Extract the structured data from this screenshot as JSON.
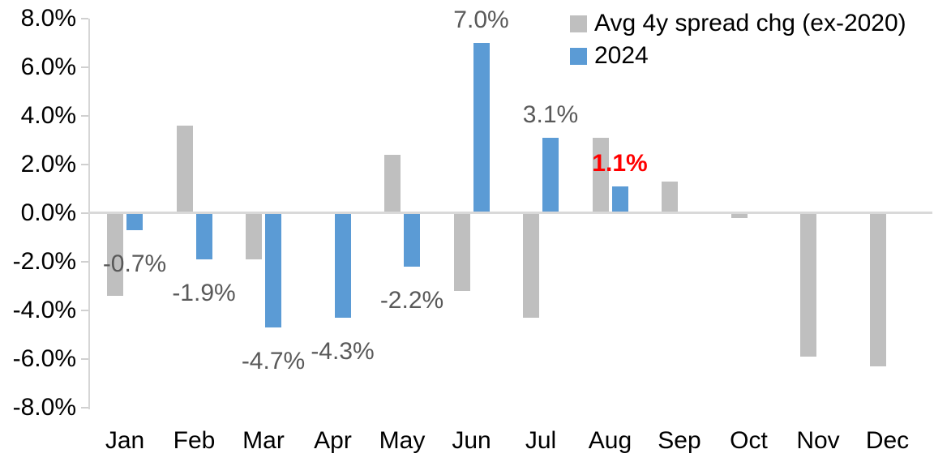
{
  "chart_data": {
    "type": "bar",
    "title": "",
    "xlabel": "",
    "ylabel": "",
    "grid": false,
    "legend_position": "top-right",
    "categories": [
      "Jan",
      "Feb",
      "Mar",
      "Apr",
      "May",
      "Jun",
      "Jul",
      "Aug",
      "Sep",
      "Oct",
      "Nov",
      "Dec"
    ],
    "y_axis": {
      "min": -8.0,
      "max": 8.0,
      "step": 2.0,
      "unit": "%",
      "ticks": [
        "8.0%",
        "6.0%",
        "4.0%",
        "2.0%",
        "0.0%",
        "-2.0%",
        "-4.0%",
        "-6.0%",
        "-8.0%"
      ]
    },
    "series": [
      {
        "name": "Avg 4y spread chg (ex-2020)",
        "color": "#bfbfbf",
        "values": [
          -3.4,
          3.6,
          -1.9,
          0.0,
          2.4,
          -3.2,
          -4.3,
          3.1,
          1.3,
          -0.2,
          -5.9,
          -6.3
        ]
      },
      {
        "name": "2024",
        "color": "#5b9bd5",
        "values": [
          -0.7,
          -1.9,
          -4.7,
          -4.3,
          -2.2,
          7.0,
          3.1,
          1.1,
          null,
          null,
          null,
          null
        ],
        "data_labels": [
          "-0.7%",
          "-1.9%",
          "-4.7%",
          "-4.3%",
          "-2.2%",
          "7.0%",
          "3.1%",
          "1.1%",
          null,
          null,
          null,
          null
        ]
      }
    ],
    "label_style": {
      "default_color": "#595959",
      "highlight_index": 7,
      "highlight_color": "#ff0000"
    },
    "axis_color": "#d9d9d9"
  }
}
